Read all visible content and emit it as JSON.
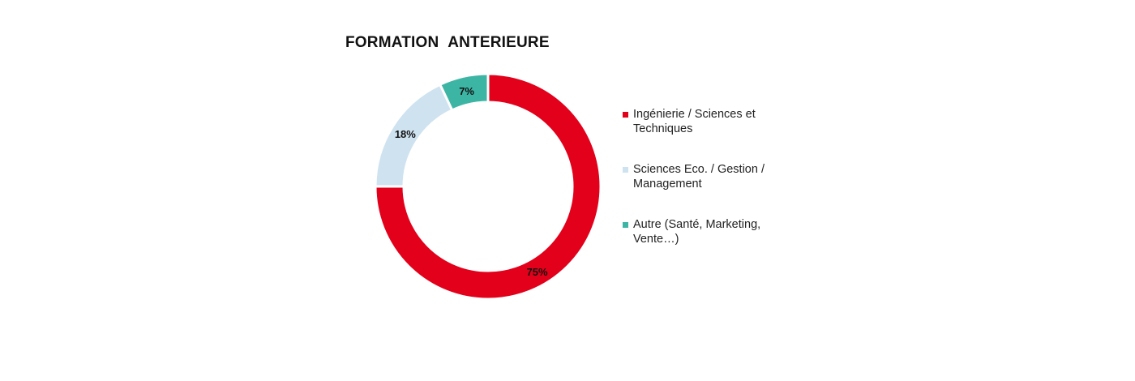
{
  "chart_data": {
    "type": "pie",
    "title": "FORMATION  ANTERIEURE",
    "series": [
      {
        "name": "Ingénierie / Sciences et Techniques",
        "value": 75,
        "label": "75%",
        "color": "#e2001a"
      },
      {
        "name": "Sciences Eco. / Gestion / Management",
        "value": 18,
        "label": "18%",
        "color": "#cfe2f0"
      },
      {
        "name": "Autre (Santé, Marketing, Vente…)",
        "value": 7,
        "label": "7%",
        "color": "#3db5a5"
      }
    ],
    "legend_position": "right"
  }
}
